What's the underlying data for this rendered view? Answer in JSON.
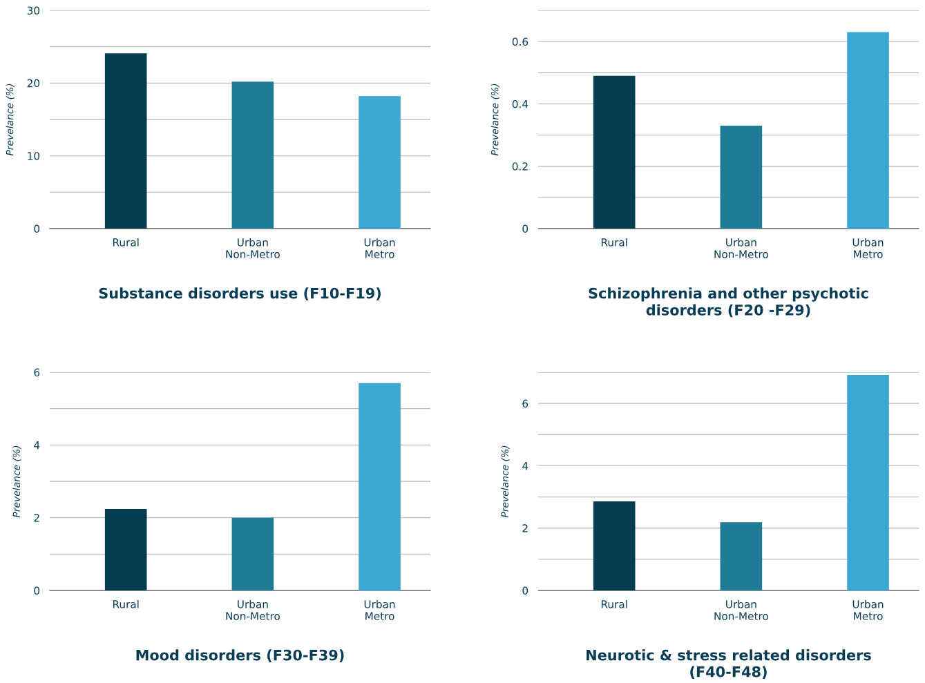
{
  "chart_data": [
    {
      "type": "bar",
      "title": "Substance disorders use (F10-F19)",
      "ylabel": "Prevelance (%)",
      "categories": [
        "Rural",
        "Urban\nNon-Metro",
        "Urban\nMetro"
      ],
      "values": [
        24.1,
        20.2,
        18.2
      ],
      "colors": [
        "#053c52",
        "#1f7b96",
        "#3aa8d2"
      ],
      "ylim": [
        0,
        30
      ],
      "yticks": [
        0,
        {
          "value": 5,
          "label": null
        },
        10,
        {
          "value": 15,
          "label": null
        },
        20,
        {
          "value": 25,
          "label": null
        },
        30
      ],
      "grid": "y"
    },
    {
      "type": "bar",
      "title": "Schizophrenia and other psychotic\ndisorders (F20 -F29)",
      "ylabel": "Prevelance (%)",
      "categories": [
        "Rural",
        "Urban\nNon-Metro",
        "Urban\nMetro"
      ],
      "values": [
        0.49,
        0.33,
        0.63
      ],
      "colors": [
        "#053c52",
        "#1f7b96",
        "#3aa8d2"
      ],
      "ylim": [
        0,
        0.7
      ],
      "yticks": [
        0,
        {
          "value": 0.1,
          "label": null
        },
        0.2,
        {
          "value": 0.3,
          "label": null
        },
        0.4,
        {
          "value": 0.5,
          "label": null
        },
        0.6,
        {
          "value": 0.7,
          "label": null
        }
      ],
      "grid": "y"
    },
    {
      "type": "bar",
      "title": "Mood disorders (F30-F39)",
      "ylabel": "Prevelance (%)",
      "categories": [
        "Rural",
        "Urban\nNon-Metro",
        "Urban\nMetro"
      ],
      "values": [
        2.24,
        2.0,
        5.7
      ],
      "colors": [
        "#053c52",
        "#1f7b96",
        "#3aa8d2"
      ],
      "ylim": [
        0,
        6
      ],
      "yticks": [
        0,
        {
          "value": 1,
          "label": null
        },
        2,
        {
          "value": 3,
          "label": null
        },
        4,
        {
          "value": 5,
          "label": null
        },
        6
      ],
      "grid": "y"
    },
    {
      "type": "bar",
      "title": "Neurotic & stress related disorders\n(F40-F48)",
      "ylabel": "Prevelance (%)",
      "categories": [
        "Rural",
        "Urban\nNon-Metro",
        "Urban\nMetro"
      ],
      "values": [
        2.86,
        2.19,
        6.91
      ],
      "colors": [
        "#053c52",
        "#1f7b96",
        "#3aa8d2"
      ],
      "ylim": [
        0,
        7
      ],
      "yticks": [
        0,
        {
          "value": 1,
          "label": null
        },
        2,
        {
          "value": 3,
          "label": null
        },
        4,
        {
          "value": 5,
          "label": null
        },
        6,
        {
          "value": 7,
          "label": null
        }
      ],
      "grid": "y"
    }
  ]
}
